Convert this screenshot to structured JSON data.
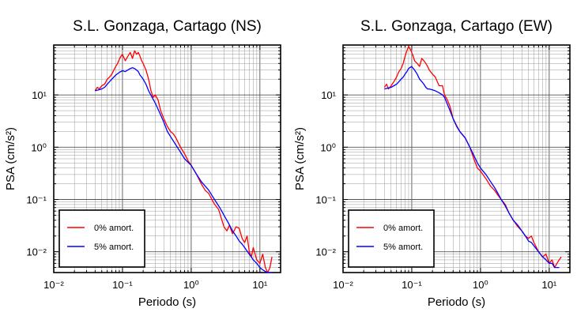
{
  "chart_data": [
    {
      "type": "line",
      "title": "S.L. Gonzaga, Cartago (NS)",
      "xlabel": "Periodo (s)",
      "ylabel": "PSA (cm/s²)",
      "xscale": "log",
      "yscale": "log",
      "xlim": [
        0.01,
        20
      ],
      "ylim": [
        0.004,
        90
      ],
      "x_ticks": [
        "10⁻²",
        "10⁻¹",
        "10⁰",
        "10¹"
      ],
      "y_ticks": [
        "10⁻²",
        "10⁻¹",
        "10⁰",
        "10¹"
      ],
      "grid": true,
      "legend_position": "bottom-left",
      "series": [
        {
          "name": "0% amort.",
          "color": "#ff0000",
          "x": [
            0.04,
            0.043,
            0.046,
            0.05,
            0.055,
            0.06,
            0.065,
            0.07,
            0.075,
            0.08,
            0.085,
            0.09,
            0.095,
            0.1,
            0.11,
            0.12,
            0.13,
            0.14,
            0.15,
            0.16,
            0.17,
            0.18,
            0.19,
            0.2,
            0.22,
            0.24,
            0.26,
            0.28,
            0.3,
            0.33,
            0.36,
            0.4,
            0.45,
            0.5,
            0.55,
            0.6,
            0.7,
            0.8,
            0.9,
            1.0,
            1.2,
            1.4,
            1.6,
            1.8,
            2.0,
            2.2,
            2.5,
            2.8,
            3.0,
            3.3,
            3.6,
            4.0,
            4.5,
            5.0,
            5.5,
            6.0,
            6.5,
            7.0,
            7.5,
            8.0,
            9.0,
            10.0,
            11.0,
            12.0,
            13.0,
            14.0,
            15.0
          ],
          "values": [
            12,
            14,
            13,
            15,
            16,
            20,
            22,
            25,
            30,
            35,
            40,
            48,
            55,
            60,
            45,
            55,
            65,
            50,
            70,
            60,
            65,
            55,
            45,
            40,
            30,
            20,
            12,
            9,
            10,
            8,
            5,
            3.5,
            2.5,
            2.0,
            1.8,
            1.5,
            1.0,
            0.75,
            0.55,
            0.45,
            0.3,
            0.2,
            0.15,
            0.13,
            0.1,
            0.08,
            0.065,
            0.04,
            0.03,
            0.025,
            0.032,
            0.022,
            0.03,
            0.028,
            0.018,
            0.015,
            0.02,
            0.01,
            0.008,
            0.012,
            0.007,
            0.006,
            0.009,
            0.005,
            0.004,
            0.005,
            0.008
          ]
        },
        {
          "name": "5% amort.",
          "color": "#0000ff",
          "x": [
            0.04,
            0.045,
            0.05,
            0.055,
            0.06,
            0.07,
            0.08,
            0.09,
            0.1,
            0.11,
            0.12,
            0.13,
            0.14,
            0.15,
            0.16,
            0.17,
            0.18,
            0.19,
            0.2,
            0.22,
            0.24,
            0.27,
            0.3,
            0.35,
            0.4,
            0.45,
            0.5,
            0.6,
            0.7,
            0.8,
            1.0,
            1.2,
            1.4,
            1.6,
            1.8,
            2.0,
            2.3,
            2.6,
            3.0,
            3.5,
            4.0,
            4.5,
            5.0,
            5.5,
            6.0,
            7.0,
            8.0,
            9.0,
            10.0,
            11.0,
            12.0,
            13.0,
            14.0,
            15.0
          ],
          "values": [
            12,
            12.5,
            13,
            14,
            16,
            20,
            24,
            27,
            29,
            28,
            30,
            32,
            33,
            32,
            30,
            28,
            24,
            22,
            20,
            16,
            12,
            9,
            7,
            4.5,
            3.0,
            2.0,
            1.6,
            1.1,
            0.8,
            0.6,
            0.45,
            0.3,
            0.22,
            0.18,
            0.15,
            0.12,
            0.09,
            0.07,
            0.05,
            0.035,
            0.025,
            0.02,
            0.016,
            0.014,
            0.012,
            0.009,
            0.007,
            0.006,
            0.005,
            0.0045,
            0.0042,
            0.004,
            0.004,
            0.004
          ]
        }
      ]
    },
    {
      "type": "line",
      "title": "S.L. Gonzaga, Cartago (EW)",
      "xlabel": "Periodo (s)",
      "ylabel": "PSA (cm/s²)",
      "xscale": "log",
      "yscale": "log",
      "xlim": [
        0.01,
        20
      ],
      "ylim": [
        0.004,
        90
      ],
      "x_ticks": [
        "10⁻²",
        "10⁻¹",
        "10⁰",
        "10¹"
      ],
      "y_ticks": [
        "10⁻²",
        "10⁻¹",
        "10⁰",
        "10¹"
      ],
      "grid": true,
      "legend_position": "bottom-left",
      "series": [
        {
          "name": "0% amort.",
          "color": "#ff0000",
          "x": [
            0.04,
            0.043,
            0.046,
            0.05,
            0.055,
            0.06,
            0.065,
            0.07,
            0.075,
            0.08,
            0.085,
            0.09,
            0.095,
            0.1,
            0.105,
            0.11,
            0.12,
            0.13,
            0.14,
            0.15,
            0.16,
            0.17,
            0.18,
            0.2,
            0.22,
            0.25,
            0.28,
            0.3,
            0.33,
            0.36,
            0.4,
            0.45,
            0.5,
            0.6,
            0.7,
            0.8,
            0.9,
            1.0,
            1.2,
            1.4,
            1.6,
            1.8,
            2.0,
            2.3,
            2.6,
            3.0,
            3.5,
            4.0,
            4.5,
            5.0,
            5.5,
            6.0,
            7.0,
            8.0,
            9.0,
            10.0,
            11.0,
            12.0,
            13.0,
            14.0,
            15.0
          ],
          "values": [
            14,
            16,
            13,
            15,
            18,
            22,
            28,
            32,
            40,
            55,
            70,
            85,
            75,
            65,
            55,
            45,
            40,
            35,
            50,
            45,
            40,
            35,
            30,
            25,
            22,
            15,
            15,
            10,
            8,
            6,
            3.5,
            2.6,
            2.0,
            1.5,
            1.0,
            0.6,
            0.4,
            0.35,
            0.25,
            0.18,
            0.15,
            0.12,
            0.1,
            0.08,
            0.055,
            0.04,
            0.03,
            0.025,
            0.02,
            0.018,
            0.02,
            0.015,
            0.01,
            0.008,
            0.009,
            0.006,
            0.007,
            0.005,
            0.006,
            0.007,
            0.008
          ]
        },
        {
          "name": "5% amort.",
          "color": "#0000ff",
          "x": [
            0.04,
            0.045,
            0.05,
            0.055,
            0.06,
            0.065,
            0.07,
            0.075,
            0.08,
            0.085,
            0.09,
            0.1,
            0.11,
            0.12,
            0.13,
            0.14,
            0.15,
            0.16,
            0.17,
            0.18,
            0.2,
            0.22,
            0.25,
            0.28,
            0.3,
            0.35,
            0.4,
            0.45,
            0.5,
            0.6,
            0.7,
            0.8,
            0.9,
            1.0,
            1.2,
            1.4,
            1.6,
            1.8,
            2.0,
            2.3,
            2.6,
            3.0,
            3.5,
            4.0,
            4.5,
            5.0,
            5.5,
            6.0,
            7.0,
            8.0,
            9.0,
            10.0,
            11.0,
            12.0,
            13.0,
            14.0
          ],
          "values": [
            13,
            13.5,
            14,
            15,
            16,
            18,
            20,
            22,
            25,
            28,
            32,
            35,
            30,
            25,
            20,
            18,
            16,
            14,
            13,
            13,
            12.5,
            12,
            11,
            10,
            9,
            5.5,
            3.5,
            2.5,
            2.0,
            1.5,
            1.0,
            0.7,
            0.5,
            0.4,
            0.3,
            0.22,
            0.17,
            0.13,
            0.1,
            0.075,
            0.055,
            0.04,
            0.032,
            0.025,
            0.02,
            0.016,
            0.015,
            0.013,
            0.01,
            0.008,
            0.007,
            0.006,
            0.006,
            0.005,
            0.005,
            0.005
          ]
        }
      ]
    }
  ]
}
